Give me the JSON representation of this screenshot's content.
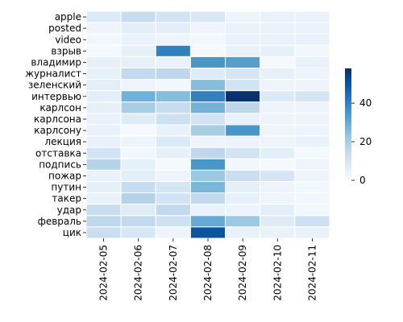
{
  "chart_data": {
    "type": "heatmap",
    "title": "",
    "xlabel": "",
    "ylabel": "",
    "x": [
      "2024-02-05",
      "2024-02-06",
      "2024-02-07",
      "2024-02-08",
      "2024-02-09",
      "2024-02-10",
      "2024-02-11"
    ],
    "y": [
      "apple",
      "posted",
      "video",
      "взрыв",
      "владимир",
      "журналист",
      "зеленский",
      "интервью",
      "карлсон",
      "карлсона",
      "карлсону",
      "лекция",
      "отставка",
      "подпись",
      "пожар",
      "путин",
      "такер",
      "удар",
      "февраль",
      "цик"
    ],
    "values": [
      [
        8,
        14,
        11,
        9,
        3,
        4,
        4
      ],
      [
        3,
        6,
        6,
        3,
        4,
        4,
        4
      ],
      [
        2,
        4,
        3,
        2,
        4,
        4,
        4
      ],
      [
        1,
        5,
        40,
        1,
        4,
        5,
        2
      ],
      [
        5,
        5,
        4,
        35,
        33,
        1,
        4
      ],
      [
        5,
        15,
        16,
        7,
        10,
        5,
        3
      ],
      [
        6,
        3,
        2,
        25,
        11,
        3,
        3
      ],
      [
        6,
        28,
        25,
        40,
        58,
        8,
        10
      ],
      [
        5,
        20,
        14,
        28,
        16,
        3,
        3
      ],
      [
        4,
        7,
        12,
        11,
        4,
        3,
        3
      ],
      [
        4,
        1,
        4,
        20,
        35,
        3,
        3
      ],
      [
        4,
        3,
        8,
        3,
        3,
        3,
        4
      ],
      [
        11,
        2,
        5,
        16,
        11,
        6,
        1
      ],
      [
        18,
        5,
        1,
        35,
        2,
        1,
        3
      ],
      [
        4,
        6,
        3,
        22,
        13,
        10,
        3
      ],
      [
        5,
        14,
        10,
        27,
        5,
        3,
        2
      ],
      [
        4,
        18,
        11,
        15,
        5,
        3,
        2
      ],
      [
        14,
        7,
        15,
        4,
        3,
        6,
        2
      ],
      [
        16,
        15,
        12,
        30,
        22,
        7,
        12
      ],
      [
        13,
        9,
        3,
        50,
        4,
        4,
        4
      ]
    ],
    "colormap": "Blues",
    "vmin": 0,
    "vmax": 58,
    "colorbar_ticks": [
      0,
      20,
      40
    ],
    "cell_border_color": "#ffffff"
  }
}
